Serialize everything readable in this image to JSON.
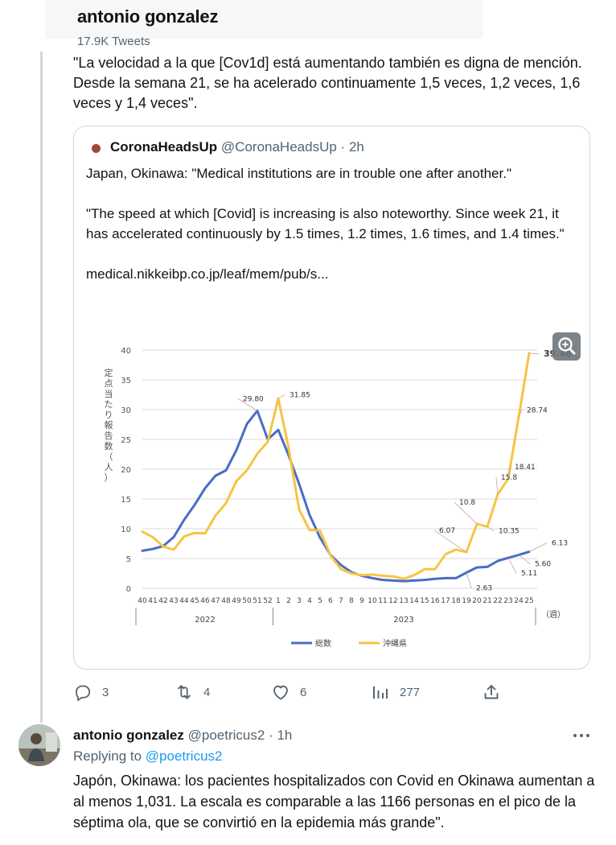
{
  "profile": {
    "display_name": "antonio gonzalez",
    "tweet_count": "17.9K Tweets"
  },
  "tweet": {
    "text": "\"La velocidad a la que [Cov1d] está aumentando también es digna de mención. Desde la semana 21, se ha acelerado continuamente 1,5 veces, 1,2 veces, 1,6 veces y 1,4 veces\".",
    "quote": {
      "name": "CoronaHeadsUp",
      "handle": "@CoronaHeadsUp",
      "separator": "·",
      "time": "2h",
      "para1": "Japan, Okinawa: \"Medical institutions are in trouble one after another.\"",
      "para2": "\"The speed at which [Covid] is increasing is also noteworthy. Since week 21, it has accelerated continuously by 1.5 times, 1.2 times, 1.6 times, and 1.4 times.\"",
      "link": "medical.nikkeibp.co.jp/leaf/mem/pub/s..."
    },
    "actions": {
      "replies": "3",
      "retweets": "4",
      "likes": "6",
      "views": "277"
    }
  },
  "reply": {
    "name": "antonio gonzalez",
    "handle": "@poetricus2",
    "separator": "·",
    "time": "1h",
    "replying_prefix": "Replying to",
    "replying_handle": "@poetricus2",
    "text": "Japón, Okinawa: los pacientes hospitalizados con Covid en Okinawa aumentan a al menos 1,031. La escala es comparable a las 1166 personas en el pico de la séptima ola, que se convirtió en la epidemia más grande\"."
  },
  "colors": {
    "accent": "#1d9bf0",
    "series_total": "#4a6cc4",
    "series_okinawa": "#f5c542"
  },
  "icons": [
    "reply-icon",
    "retweet-icon",
    "like-icon",
    "views-icon",
    "share-icon",
    "more-icon",
    "zoom-icon"
  ],
  "chart_data": {
    "type": "line",
    "ylabel": "定点当たり報告数（人）",
    "ylim": [
      0,
      40
    ],
    "yticks": [
      0,
      5,
      10,
      15,
      20,
      25,
      30,
      35,
      40
    ],
    "x_unit": "（週）",
    "categories": [
      "40",
      "41",
      "42",
      "43",
      "44",
      "45",
      "46",
      "47",
      "48",
      "49",
      "50",
      "51",
      "52",
      "1",
      "2",
      "3",
      "4",
      "5",
      "6",
      "7",
      "8",
      "9",
      "10",
      "11",
      "12",
      "13",
      "14",
      "15",
      "16",
      "17",
      "18",
      "19",
      "20",
      "21",
      "22",
      "23",
      "24",
      "25"
    ],
    "years": [
      {
        "label": "2022",
        "from": 0,
        "to": 12
      },
      {
        "label": "2023",
        "from": 13,
        "to": 37
      }
    ],
    "series": [
      {
        "name": "総数",
        "color": "#4a6cc4",
        "values": [
          6.3,
          6.6,
          7.1,
          8.6,
          11.5,
          14.0,
          16.8,
          18.9,
          19.8,
          23.2,
          27.6,
          29.8,
          25.0,
          26.6,
          22.3,
          17.5,
          12.3,
          8.5,
          5.6,
          3.9,
          2.7,
          2.1,
          1.7,
          1.4,
          1.3,
          1.2,
          1.3,
          1.4,
          1.6,
          1.7,
          1.7,
          2.63,
          3.5,
          3.6,
          4.6,
          5.11,
          5.6,
          6.13
        ]
      },
      {
        "name": "沖縄県",
        "color": "#f5c542",
        "values": [
          9.5,
          8.6,
          7.0,
          6.5,
          8.7,
          9.3,
          9.2,
          12.2,
          14.3,
          18.0,
          19.8,
          22.6,
          24.6,
          31.85,
          23.5,
          13.2,
          9.8,
          9.7,
          5.5,
          3.2,
          2.5,
          2.2,
          2.3,
          2.1,
          2.0,
          1.6,
          2.2,
          3.2,
          3.2,
          5.7,
          6.5,
          6.07,
          10.8,
          10.35,
          15.8,
          18.41,
          28.74,
          39.48
        ]
      }
    ],
    "annotations": [
      {
        "text": "29.80"
      },
      {
        "text": "31.85"
      },
      {
        "text": "6.07"
      },
      {
        "text": "10.8"
      },
      {
        "text": "10.35"
      },
      {
        "text": "15.8"
      },
      {
        "text": "18.41"
      },
      {
        "text": "28.74"
      },
      {
        "text": "39.48"
      },
      {
        "text": "2.63"
      },
      {
        "text": "5.11"
      },
      {
        "text": "5.60"
      },
      {
        "text": "6.13"
      }
    ]
  }
}
